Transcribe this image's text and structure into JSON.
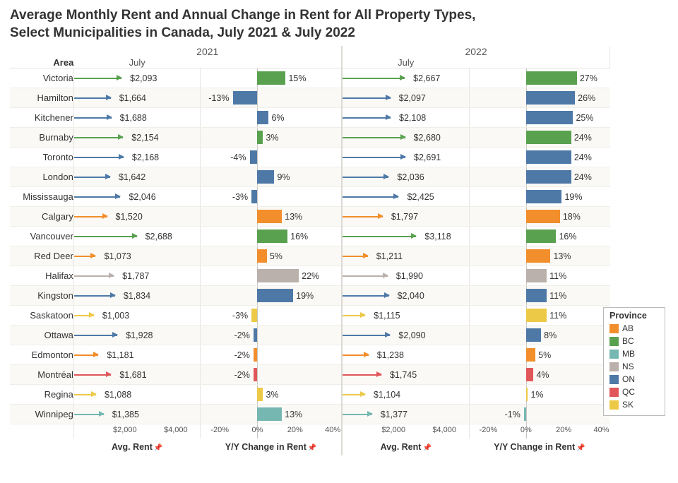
{
  "title_line1": "Average Monthly Rent and Annual Change in Rent for All Property Types,",
  "title_line2": "Select Municipalities in Canada, July 2021 & July 2022",
  "area_header": "Area",
  "years": {
    "y2021": "2021",
    "y2022": "2022"
  },
  "month": "July",
  "axis_labels": {
    "rent": "Avg. Rent",
    "yoy": "Y/Y Change in Rent"
  },
  "rent_axis": {
    "min": 0,
    "max": 5000,
    "ticks": [
      2000,
      4000
    ],
    "tick_labels": [
      "$2,000",
      "$4,000"
    ]
  },
  "yoy_axis": {
    "min": -30,
    "max": 45,
    "ticks": [
      -20,
      0,
      20,
      40
    ],
    "tick_labels": [
      "-20%",
      "0%",
      "20%",
      "40%"
    ]
  },
  "provinces": {
    "AB": "#f28e2b",
    "BC": "#59a14f",
    "MB": "#76b7b2",
    "NS": "#bab0ac",
    "ON": "#4e79a7",
    "QC": "#e15759",
    "SK": "#edc948"
  },
  "legend_title": "Province",
  "legend_order": [
    "AB",
    "BC",
    "MB",
    "NS",
    "ON",
    "QC",
    "SK"
  ],
  "rows": [
    {
      "area": "Victoria",
      "prov": "BC",
      "rent21": 2093,
      "rent21_lbl": "$2,093",
      "yoy21": 15,
      "yoy21_lbl": "15%",
      "rent22": 2667,
      "rent22_lbl": "$2,667",
      "yoy22": 27,
      "yoy22_lbl": "27%"
    },
    {
      "area": "Hamilton",
      "prov": "ON",
      "rent21": 1664,
      "rent21_lbl": "$1,664",
      "yoy21": -13,
      "yoy21_lbl": "-13%",
      "rent22": 2097,
      "rent22_lbl": "$2,097",
      "yoy22": 26,
      "yoy22_lbl": "26%"
    },
    {
      "area": "Kitchener",
      "prov": "ON",
      "rent21": 1688,
      "rent21_lbl": "$1,688",
      "yoy21": 6,
      "yoy21_lbl": "6%",
      "rent22": 2108,
      "rent22_lbl": "$2,108",
      "yoy22": 25,
      "yoy22_lbl": "25%"
    },
    {
      "area": "Burnaby",
      "prov": "BC",
      "rent21": 2154,
      "rent21_lbl": "$2,154",
      "yoy21": 3,
      "yoy21_lbl": "3%",
      "rent22": 2680,
      "rent22_lbl": "$2,680",
      "yoy22": 24,
      "yoy22_lbl": "24%"
    },
    {
      "area": "Toronto",
      "prov": "ON",
      "rent21": 2168,
      "rent21_lbl": "$2,168",
      "yoy21": -4,
      "yoy21_lbl": "-4%",
      "rent22": 2691,
      "rent22_lbl": "$2,691",
      "yoy22": 24,
      "yoy22_lbl": "24%"
    },
    {
      "area": "London",
      "prov": "ON",
      "rent21": 1642,
      "rent21_lbl": "$1,642",
      "yoy21": 9,
      "yoy21_lbl": "9%",
      "rent22": 2036,
      "rent22_lbl": "$2,036",
      "yoy22": 24,
      "yoy22_lbl": "24%"
    },
    {
      "area": "Mississauga",
      "prov": "ON",
      "rent21": 2046,
      "rent21_lbl": "$2,046",
      "yoy21": -3,
      "yoy21_lbl": "-3%",
      "rent22": 2425,
      "rent22_lbl": "$2,425",
      "yoy22": 19,
      "yoy22_lbl": "19%"
    },
    {
      "area": "Calgary",
      "prov": "AB",
      "rent21": 1520,
      "rent21_lbl": "$1,520",
      "yoy21": 13,
      "yoy21_lbl": "13%",
      "rent22": 1797,
      "rent22_lbl": "$1,797",
      "yoy22": 18,
      "yoy22_lbl": "18%"
    },
    {
      "area": "Vancouver",
      "prov": "BC",
      "rent21": 2688,
      "rent21_lbl": "$2,688",
      "yoy21": 16,
      "yoy21_lbl": "16%",
      "rent22": 3118,
      "rent22_lbl": "$3,118",
      "yoy22": 16,
      "yoy22_lbl": "16%"
    },
    {
      "area": "Red Deer",
      "prov": "AB",
      "rent21": 1073,
      "rent21_lbl": "$1,073",
      "yoy21": 5,
      "yoy21_lbl": "5%",
      "rent22": 1211,
      "rent22_lbl": "$1,211",
      "yoy22": 13,
      "yoy22_lbl": "13%"
    },
    {
      "area": "Halifax",
      "prov": "NS",
      "rent21": 1787,
      "rent21_lbl": "$1,787",
      "yoy21": 22,
      "yoy21_lbl": "22%",
      "rent22": 1990,
      "rent22_lbl": "$1,990",
      "yoy22": 11,
      "yoy22_lbl": "11%"
    },
    {
      "area": "Kingston",
      "prov": "ON",
      "rent21": 1834,
      "rent21_lbl": "$1,834",
      "yoy21": 19,
      "yoy21_lbl": "19%",
      "rent22": 2040,
      "rent22_lbl": "$2,040",
      "yoy22": 11,
      "yoy22_lbl": "11%"
    },
    {
      "area": "Saskatoon",
      "prov": "SK",
      "rent21": 1003,
      "rent21_lbl": "$1,003",
      "yoy21": -3,
      "yoy21_lbl": "-3%",
      "rent22": 1115,
      "rent22_lbl": "$1,115",
      "yoy22": 11,
      "yoy22_lbl": "11%"
    },
    {
      "area": "Ottawa",
      "prov": "ON",
      "rent21": 1928,
      "rent21_lbl": "$1,928",
      "yoy21": -2,
      "yoy21_lbl": "-2%",
      "rent22": 2090,
      "rent22_lbl": "$2,090",
      "yoy22": 8,
      "yoy22_lbl": "8%"
    },
    {
      "area": "Edmonton",
      "prov": "AB",
      "rent21": 1181,
      "rent21_lbl": "$1,181",
      "yoy21": -2,
      "yoy21_lbl": "-2%",
      "rent22": 1238,
      "rent22_lbl": "$1,238",
      "yoy22": 5,
      "yoy22_lbl": "5%"
    },
    {
      "area": "Montréal",
      "prov": "QC",
      "rent21": 1681,
      "rent21_lbl": "$1,681",
      "yoy21": -2,
      "yoy21_lbl": "-2%",
      "rent22": 1745,
      "rent22_lbl": "$1,745",
      "yoy22": 4,
      "yoy22_lbl": "4%"
    },
    {
      "area": "Regina",
      "prov": "SK",
      "rent21": 1088,
      "rent21_lbl": "$1,088",
      "yoy21": 3,
      "yoy21_lbl": "3%",
      "rent22": 1104,
      "rent22_lbl": "$1,104",
      "yoy22": 1,
      "yoy22_lbl": "1%"
    },
    {
      "area": "Winnipeg",
      "prov": "MB",
      "rent21": 1385,
      "rent21_lbl": "$1,385",
      "yoy21": 13,
      "yoy21_lbl": "13%",
      "rent22": 1377,
      "rent22_lbl": "$1,377",
      "yoy22": -1,
      "yoy22_lbl": "-1%"
    }
  ]
}
